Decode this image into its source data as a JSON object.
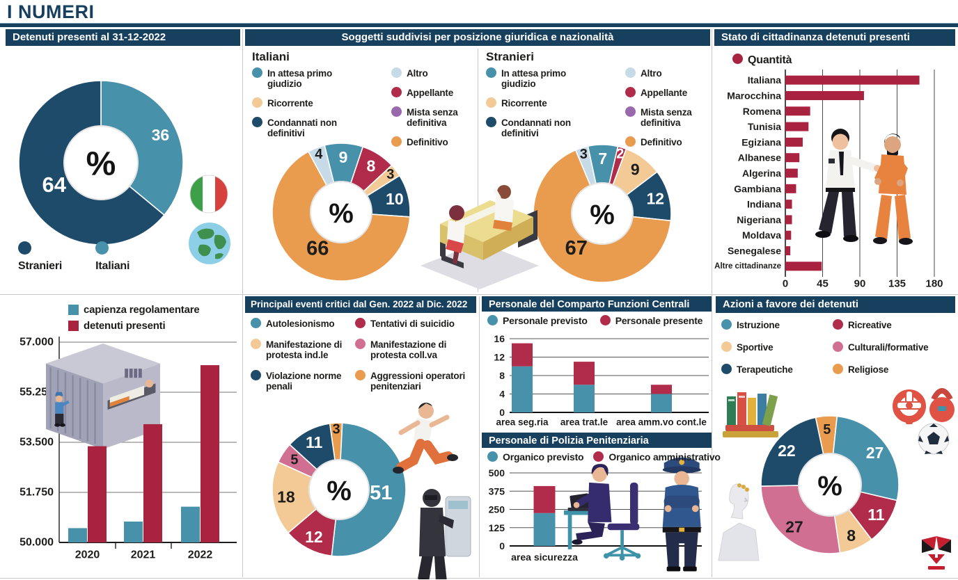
{
  "page": {
    "title": "I NUMERI"
  },
  "colors": {
    "navy": "#17405f",
    "teal": "#4791ab",
    "dark_slice": "#1d4b69",
    "orange": "#e99b4e",
    "crimson": "#b12b4a",
    "tan": "#f3ca96",
    "light_blue": "#c6dbe7",
    "pink": "#d06f92",
    "purple": "#9869ac",
    "bar_red": "#a92340",
    "text": "#1d1d1b"
  },
  "chart_data": [
    {
      "id": "detenuti",
      "type": "donut",
      "title": "Detenuti presenti al 31-12-2022",
      "center_label": "%",
      "start_angle": 0,
      "slices": [
        {
          "label": "Italiani",
          "value": 36,
          "color": "#4791ab"
        },
        {
          "label": "Stranieri",
          "value": 64,
          "color": "#1d4b69"
        }
      ],
      "legend": [
        {
          "label": "Stranieri",
          "color": "#1d4b69"
        },
        {
          "label": "Italiani",
          "color": "#4791ab"
        }
      ]
    },
    {
      "id": "italiani",
      "type": "donut",
      "panel_title": "Soggetti suddivisi per posizione giuridica e nazionalità",
      "title": "Italiani",
      "center_label": "%",
      "start_angle": -14,
      "slices": [
        {
          "label": "In attesa primo giudizio",
          "value": 9,
          "color": "#4791ab"
        },
        {
          "label": "Appellante",
          "value": 8,
          "color": "#b12b4a"
        },
        {
          "label": "Ricorrente",
          "value": 3,
          "color": "#f3ca96"
        },
        {
          "label": "Condannati non definitivi",
          "value": 10,
          "color": "#1d4b69"
        },
        {
          "label": "Definitivo",
          "value": 66,
          "color": "#e99b4e"
        },
        {
          "label": "Altro",
          "value": 4,
          "color": "#c6dbe7"
        }
      ],
      "legend_col1": [
        {
          "label": "In attesa primo giudizio",
          "color": "#4791ab"
        },
        {
          "label": "Ricorrente",
          "color": "#f3ca96"
        },
        {
          "label": "Condannati non definitivi",
          "color": "#1d4b69"
        }
      ],
      "legend_col2": [
        {
          "label": "Altro",
          "color": "#c6dbe7"
        },
        {
          "label": "Appellante",
          "color": "#b12b4a"
        },
        {
          "label": "Mista senza definitiva",
          "color": "#9869ac"
        },
        {
          "label": "Definitivo",
          "color": "#e99b4e"
        }
      ]
    },
    {
      "id": "stranieri",
      "type": "donut",
      "title": "Stranieri",
      "center_label": "%",
      "start_angle": -12,
      "slices": [
        {
          "label": "In attesa primo giudizio",
          "value": 7,
          "color": "#4791ab"
        },
        {
          "label": "Appellante",
          "value": 2,
          "color": "#b12b4a"
        },
        {
          "label": "Ricorrente",
          "value": 9,
          "color": "#f3ca96"
        },
        {
          "label": "Condannati non definitivi",
          "value": 12,
          "color": "#1d4b69"
        },
        {
          "label": "Definitivo",
          "value": 67,
          "color": "#e99b4e"
        },
        {
          "label": "Altro",
          "value": 3,
          "color": "#c6dbe7"
        }
      ],
      "legend_col1": [
        {
          "label": "In attesa primo giudizio",
          "color": "#4791ab"
        },
        {
          "label": "Ricorrente",
          "color": "#f3ca96"
        },
        {
          "label": "Condannati non definitivi",
          "color": "#1d4b69"
        }
      ],
      "legend_col2": [
        {
          "label": "Altro",
          "color": "#c6dbe7"
        },
        {
          "label": "Appellante",
          "color": "#b12b4a"
        },
        {
          "label": "Mista senza definitiva",
          "color": "#9869ac"
        },
        {
          "label": "Definitivo",
          "color": "#e99b4e"
        }
      ]
    },
    {
      "id": "cittadinanza",
      "type": "bar_h",
      "title": "Stato di cittadinanza detenuti presenti",
      "legend": [
        {
          "label": "Quantità",
          "color": "#a92340"
        }
      ],
      "categories": [
        "Italiana",
        "Marocchina",
        "Romena",
        "Tunisia",
        "Egiziana",
        "Albanese",
        "Algerina",
        "Gambiana",
        "Indiana",
        "Nigeriana",
        "Moldava",
        "Senegalese",
        "Altre cittadinanze"
      ],
      "values": [
        162,
        95,
        30,
        28,
        21,
        17,
        15,
        13,
        8,
        8,
        7,
        6,
        44
      ],
      "x_ticks": [
        {
          "label": "0",
          "v": 0
        },
        {
          "label": "45",
          "v": 45
        },
        {
          "label": "90",
          "v": 90
        },
        {
          "label": "135",
          "v": 135
        },
        {
          "label": "180",
          "v": 180
        }
      ],
      "xlim": [
        0,
        180
      ],
      "bar_color": "#a92340"
    },
    {
      "id": "capienza",
      "type": "bar_grouped",
      "categories": [
        "2020",
        "2021",
        "2022"
      ],
      "series": [
        {
          "name": "capienza regolamentare",
          "color": "#4791ab",
          "values": [
            50500,
            50730,
            51250
          ]
        },
        {
          "name": "detenuti presenti",
          "color": "#a92340",
          "values": [
            53364,
            54134,
            56196
          ]
        }
      ],
      "legend": [
        {
          "label": "capienza regolamentare",
          "color": "#4791ab"
        },
        {
          "label": "detenuti presenti",
          "color": "#a92340"
        }
      ],
      "y_ticks": [
        {
          "label": "57.000",
          "v": 57000
        },
        {
          "label": "55.250",
          "v": 55250
        },
        {
          "label": "53.500",
          "v": 53500
        },
        {
          "label": "51.750",
          "v": 51750
        },
        {
          "label": "50.000",
          "v": 50000
        }
      ],
      "ylim": [
        50000,
        57000
      ]
    },
    {
      "id": "eventi",
      "type": "donut",
      "title": "Principali eventi critici dal Gen. 2022 al Dic. 2022",
      "center_label": "%",
      "start_angle": -8,
      "slices": [
        {
          "label": "Aggressioni operatori penitenziari",
          "value": 3,
          "color": "#e99b4e"
        },
        {
          "label": "Autolesionismo",
          "value": 51,
          "color": "#4791ab"
        },
        {
          "label": "Tentativi di suicidio",
          "value": 12,
          "color": "#b12b4a"
        },
        {
          "label": "Manifestazione di protesta ind.le",
          "value": 18,
          "color": "#f3ca96"
        },
        {
          "label": "Manifestazione di protesta coll.va",
          "value": 5,
          "color": "#d06f92"
        },
        {
          "label": "Violazione norme penali",
          "value": 11,
          "color": "#1d4b69"
        }
      ],
      "legend_col1": [
        {
          "label": "Autolesionismo",
          "color": "#4791ab"
        },
        {
          "label": "Manifestazione di protesta ind.le",
          "color": "#f3ca96"
        },
        {
          "label": "Violazione norme penali",
          "color": "#1d4b69"
        }
      ],
      "legend_col2": [
        {
          "label": "Tentativi di suicidio",
          "color": "#b12b4a"
        },
        {
          "label": "Manifestazione di protesta coll.va",
          "color": "#d06f92"
        },
        {
          "label": "Aggressioni operatori penitenziari",
          "color": "#e99b4e"
        }
      ]
    },
    {
      "id": "comparto",
      "type": "bar_stacked",
      "title": "Personale del Comparto Funzioni Centrali",
      "categories": [
        "area seg.ria",
        "area trat.le",
        "area amm.vo cont.le"
      ],
      "series": [
        {
          "name": "Personale previsto",
          "color": "#4791ab",
          "values": [
            10,
            6,
            4
          ]
        },
        {
          "name": "Personale presente",
          "color": "#b12b4a",
          "values": [
            5,
            5,
            2
          ]
        }
      ],
      "legend": [
        {
          "label": "Personale previsto",
          "color": "#4791ab"
        },
        {
          "label": "Personale presente",
          "color": "#b12b4a"
        }
      ],
      "y_ticks": [
        {
          "label": "16",
          "v": 16
        },
        {
          "label": "12",
          "v": 12
        },
        {
          "label": "8",
          "v": 8
        },
        {
          "label": "4",
          "v": 4
        },
        {
          "label": "0",
          "v": 0
        }
      ],
      "ylim": [
        0,
        16
      ]
    },
    {
      "id": "polizia",
      "type": "bar_stacked",
      "title": "Personale di Polizia Penitenziaria",
      "categories": [
        "area sicurezza"
      ],
      "series": [
        {
          "name": "Organico previsto",
          "color": "#4791ab",
          "values": [
            225
          ]
        },
        {
          "name": "Organico amministrativo",
          "color": "#b12b4a",
          "values": [
            185
          ]
        }
      ],
      "legend": [
        {
          "label": "Organico previsto",
          "color": "#4791ab"
        },
        {
          "label": "Organico amministrativo",
          "color": "#b12b4a"
        }
      ],
      "y_ticks": [
        {
          "label": "500",
          "v": 500
        },
        {
          "label": "375",
          "v": 375
        },
        {
          "label": "250",
          "v": 250
        },
        {
          "label": "125",
          "v": 125
        },
        {
          "label": "0",
          "v": 0
        }
      ],
      "ylim": [
        0,
        500
      ]
    },
    {
      "id": "azioni",
      "type": "donut",
      "title": "Azioni a favore dei detenuti",
      "center_label": "%",
      "start_angle": -12,
      "slices": [
        {
          "label": "Religiose",
          "value": 5,
          "color": "#e99b4e"
        },
        {
          "label": "Istruzione",
          "value": 27,
          "color": "#4791ab"
        },
        {
          "label": "Ricreative",
          "value": 11,
          "color": "#b12b4a"
        },
        {
          "label": "Sportive",
          "value": 8,
          "color": "#f3ca96"
        },
        {
          "label": "Culturali/formative",
          "value": 27,
          "color": "#d06f92"
        },
        {
          "label": "Terapeutiche",
          "value": 22,
          "color": "#1d4b69"
        }
      ],
      "legend_col1": [
        {
          "label": "Istruzione",
          "color": "#4791ab"
        },
        {
          "label": "Sportive",
          "color": "#f3ca96"
        },
        {
          "label": "Terapeutiche",
          "color": "#1d4b69"
        }
      ],
      "legend_col2": [
        {
          "label": "Ricreative",
          "color": "#b12b4a"
        },
        {
          "label": "Culturali/formative",
          "color": "#d06f92"
        },
        {
          "label": "Religiose",
          "color": "#e99b4e"
        }
      ]
    }
  ]
}
